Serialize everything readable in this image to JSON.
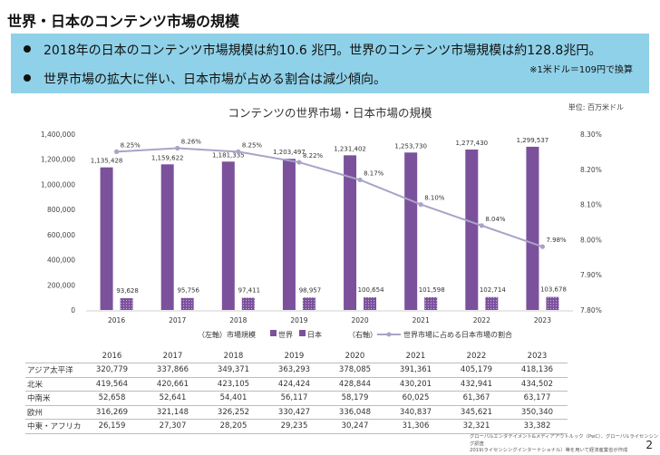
{
  "slide": {
    "title": "世界・日本のコンテンツ市場の規模",
    "bullets": [
      "2018年の日本のコンテンツ市場規模は約10.6 兆円。世界のコンテンツ市場規模は約128.8兆円。",
      "世界市場の拡大に伴い、日本市場が占める割合は減少傾向。"
    ],
    "note": "※1米ドル＝109円で換算",
    "page_number": "2",
    "source_lines": [
      "グローバルエンタテイメント&メディアアウトルック（PwC）、グローバルライセンシング調査",
      "2019(ライセンシングインターナショナル）等を用いて経済産業省が作成"
    ]
  },
  "colors": {
    "summary_bg": "#8fd1e8",
    "world_bar": "#7b519c",
    "japan_bar": "#7b519c",
    "share_line": "#a9a3c7",
    "axis_text": "#444444"
  },
  "chart_data": {
    "type": "bar",
    "title": "コンテンツの世界市場・日本市場の規模",
    "unit_label": "単位: 百万米ドル",
    "categories": [
      "2016",
      "2017",
      "2018",
      "2019",
      "2020",
      "2021",
      "2022",
      "2023"
    ],
    "series": [
      {
        "name": "世界",
        "axis": "left",
        "values": [
          1135428,
          1159622,
          1181335,
          1203497,
          1231402,
          1253730,
          1277430,
          1299537
        ],
        "labels": [
          "1,135,428",
          "1,159,622",
          "1,181,335",
          "1,203,497",
          "1,231,402",
          "1,253,730",
          "1,277,430",
          "1,299,537"
        ]
      },
      {
        "name": "日本",
        "axis": "left",
        "values": [
          93628,
          95756,
          97411,
          98957,
          100654,
          101598,
          102714,
          103678
        ],
        "labels": [
          "93,628",
          "95,756",
          "97,411",
          "98,957",
          "100,654",
          "101,598",
          "102,714",
          "103,678"
        ]
      },
      {
        "name": "世界市場に占める日本市場の割合",
        "axis": "right",
        "type": "line",
        "values": [
          8.25,
          8.26,
          8.25,
          8.22,
          8.17,
          8.1,
          8.04,
          7.98
        ],
        "labels": [
          "8.25%",
          "8.26%",
          "8.25%",
          "8.22%",
          "8.17%",
          "8.10%",
          "8.04%",
          "7.98%"
        ]
      }
    ],
    "left_axis": {
      "ylim": [
        0,
        1400000
      ],
      "ticks": [
        "0",
        "200,000",
        "400,000",
        "600,000",
        "800,000",
        "1,000,000",
        "1,200,000",
        "1,400,000"
      ]
    },
    "right_axis": {
      "ylim": [
        7.8,
        8.3
      ],
      "ticks": [
        "7.80%",
        "7.90%",
        "8.00%",
        "8.10%",
        "8.20%",
        "8.30%"
      ]
    },
    "legend": {
      "left_label": "（左軸）市場規模",
      "world": "世界",
      "japan": "日本",
      "right_label": "（右軸）",
      "share": "世界市場に占める日本市場の割合"
    },
    "grid": false
  },
  "regions_table": {
    "years": [
      "2016",
      "2017",
      "2018",
      "2019",
      "2020",
      "2021",
      "2022",
      "2023"
    ],
    "rows": [
      {
        "region": "アジア太平洋",
        "values": [
          "320,779",
          "337,866",
          "349,371",
          "363,293",
          "378,085",
          "391,361",
          "405,179",
          "418,136"
        ]
      },
      {
        "region": "北米",
        "values": [
          "419,564",
          "420,661",
          "423,105",
          "424,424",
          "428,844",
          "430,201",
          "432,941",
          "434,502"
        ]
      },
      {
        "region": "中南米",
        "values": [
          "52,658",
          "52,641",
          "54,401",
          "56,117",
          "58,179",
          "60,025",
          "61,367",
          "63,177"
        ]
      },
      {
        "region": "欧州",
        "values": [
          "316,269",
          "321,148",
          "326,252",
          "330,427",
          "336,048",
          "340,837",
          "345,621",
          "350,340"
        ]
      },
      {
        "region": "中東・アフリカ",
        "values": [
          "26,159",
          "27,307",
          "28,205",
          "29,235",
          "30,247",
          "31,306",
          "32,321",
          "33,382"
        ]
      }
    ]
  }
}
